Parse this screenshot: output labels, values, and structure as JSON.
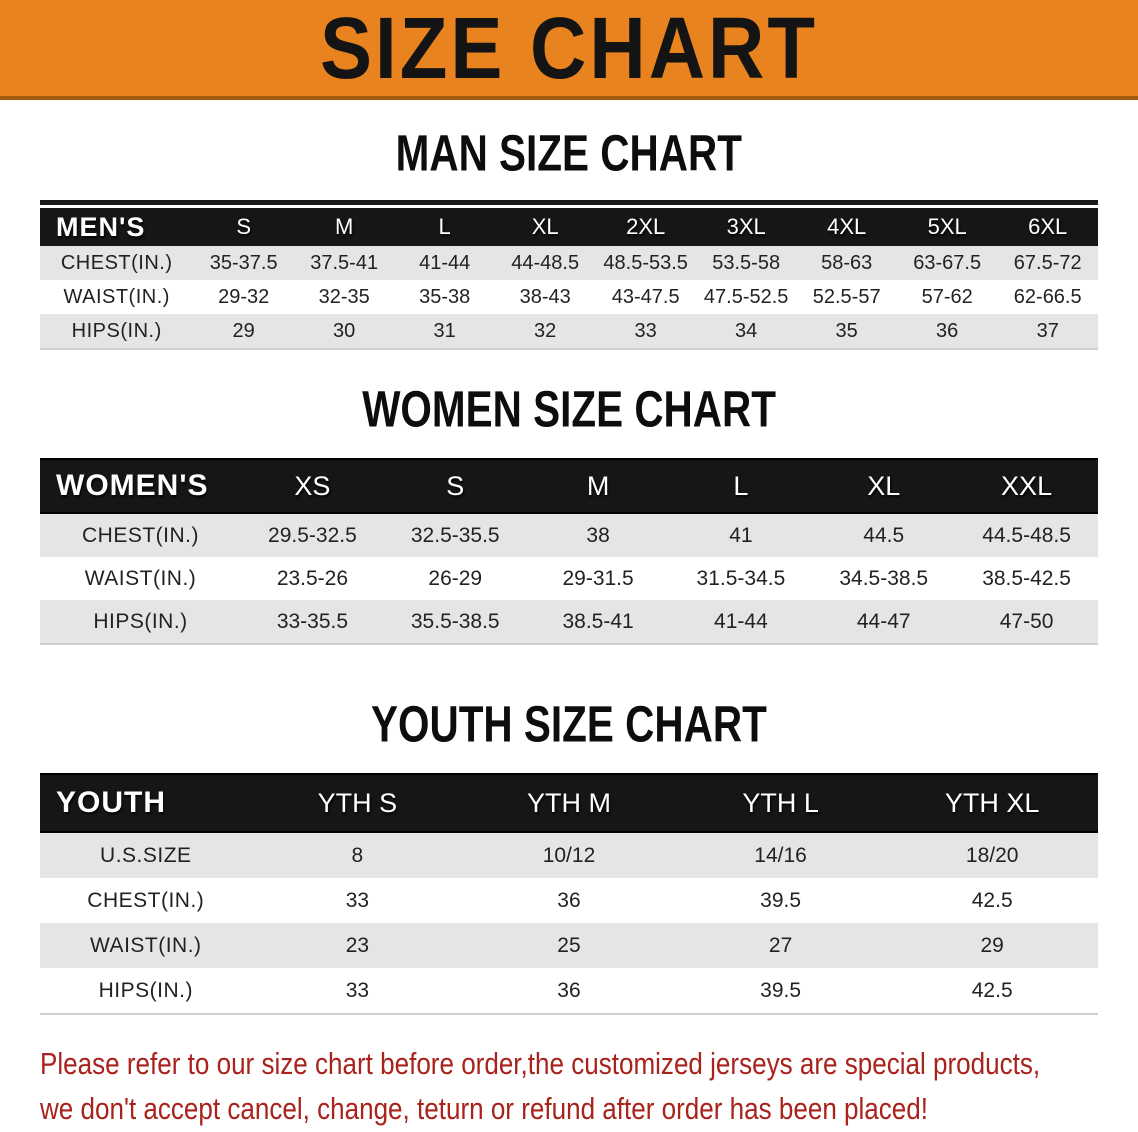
{
  "banner": {
    "title": "SIZE CHART"
  },
  "colors": {
    "banner": "#E8831F",
    "banner-edge": "#A15A10",
    "header": "#161616",
    "row": "#E5E5E5",
    "warning": "#A9231C"
  },
  "sections": [
    {
      "heading": "MAN SIZE CHART",
      "table": {
        "header_label": "MEN'S",
        "sizes": [
          "S",
          "M",
          "L",
          "XL",
          "2XL",
          "3XL",
          "4XL",
          "5XL",
          "6XL"
        ],
        "rows": [
          {
            "label": "CHEST(IN.)",
            "values": [
              "35-37.5",
              "37.5-41",
              "41-44",
              "44-48.5",
              "48.5-53.5",
              "53.5-58",
              "58-63",
              "63-67.5",
              "67.5-72"
            ]
          },
          {
            "label": "WAIST(IN.)",
            "values": [
              "29-32",
              "32-35",
              "35-38",
              "38-43",
              "43-47.5",
              "47.5-52.5",
              "52.5-57",
              "57-62",
              "62-66.5"
            ]
          },
          {
            "label": "HIPS(IN.)",
            "values": [
              "29",
              "30",
              "31",
              "32",
              "33",
              "34",
              "35",
              "36",
              "37"
            ]
          }
        ]
      }
    },
    {
      "heading": "WOMEN SIZE CHART",
      "table": {
        "header_label": "WOMEN'S",
        "sizes": [
          "XS",
          "S",
          "M",
          "L",
          "XL",
          "XXL"
        ],
        "rows": [
          {
            "label": "CHEST(IN.)",
            "values": [
              "29.5-32.5",
              "32.5-35.5",
              "38",
              "41",
              "44.5",
              "44.5-48.5"
            ]
          },
          {
            "label": "WAIST(IN.)",
            "values": [
              "23.5-26",
              "26-29",
              "29-31.5",
              "31.5-34.5",
              "34.5-38.5",
              "38.5-42.5"
            ]
          },
          {
            "label": "HIPS(IN.)",
            "values": [
              "33-35.5",
              "35.5-38.5",
              "38.5-41",
              "41-44",
              "44-47",
              "47-50"
            ]
          }
        ]
      }
    },
    {
      "heading": "YOUTH SIZE CHART",
      "table": {
        "header_label": "YOUTH",
        "sizes": [
          "YTH S",
          "YTH M",
          "YTH L",
          "YTH XL"
        ],
        "rows": [
          {
            "label": "U.S.SIZE",
            "values": [
              "8",
              "10/12",
              "14/16",
              "18/20"
            ]
          },
          {
            "label": "CHEST(IN.)",
            "values": [
              "33",
              "36",
              "39.5",
              "42.5"
            ]
          },
          {
            "label": "WAIST(IN.)",
            "values": [
              "23",
              "25",
              "27",
              "29"
            ]
          },
          {
            "label": "HIPS(IN.)",
            "values": [
              "33",
              "36",
              "39.5",
              "42.5"
            ]
          }
        ]
      }
    }
  ],
  "disclaimer": {
    "line1": "Please refer to our size chart before order,the customized jerseys are special products,",
    "line2": "we don't accept cancel, change, teturn or refund after order has been placed!"
  }
}
